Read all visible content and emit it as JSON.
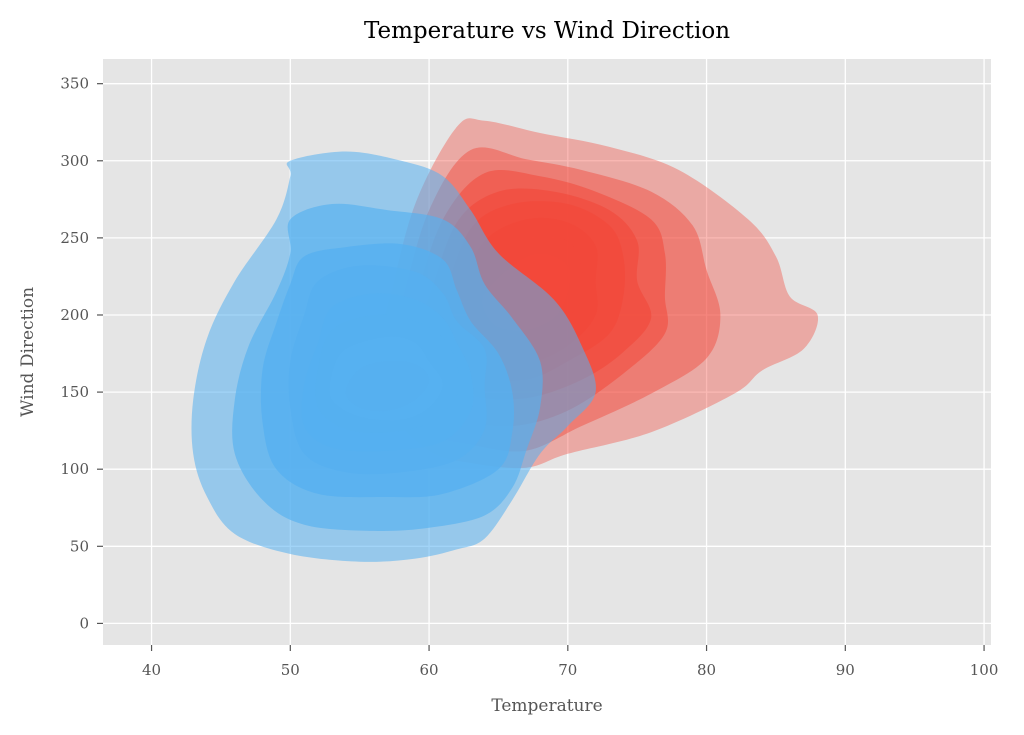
{
  "chart_data": {
    "type": "kde-contour",
    "title": "Temperature vs Wind Direction",
    "xlabel": "Temperature",
    "ylabel": "Wind Direction",
    "xlim": [
      36.5,
      100.5
    ],
    "ylim": [
      -14,
      366
    ],
    "xticks": [
      40,
      50,
      60,
      70,
      80,
      90,
      100
    ],
    "yticks": [
      0,
      50,
      100,
      150,
      200,
      250,
      300,
      350
    ],
    "grid": true,
    "background": "#e5e5e5",
    "series": [
      {
        "color": "#f2483a",
        "levels": [
          {
            "alpha": 0.38,
            "points": [
              [
                57,
                205
              ],
              [
                59,
                272
              ],
              [
                62,
                322
              ],
              [
                64,
                326
              ],
              [
                68,
                318
              ],
              [
                73,
                309
              ],
              [
                78,
                294
              ],
              [
                83,
                262
              ],
              [
                85,
                238
              ],
              [
                86,
                212
              ],
              [
                88,
                200
              ],
              [
                87,
                178
              ],
              [
                84,
                164
              ],
              [
                82,
                149
              ],
              [
                76,
                124
              ],
              [
                70,
                110
              ],
              [
                67,
                101
              ],
              [
                63,
                104
              ],
              [
                60,
                112
              ],
              [
                57,
                140
              ],
              [
                56,
                175
              ]
            ]
          },
          {
            "alpha": 0.45,
            "points": [
              [
                58,
                208
              ],
              [
                60,
                268
              ],
              [
                63,
                307
              ],
              [
                67,
                301
              ],
              [
                71,
                294
              ],
              [
                76,
                280
              ],
              [
                79,
                258
              ],
              [
                80,
                229
              ],
              [
                81,
                200
              ],
              [
                80,
                172
              ],
              [
                76,
                149
              ],
              [
                71,
                128
              ],
              [
                67,
                112
              ],
              [
                63,
                116
              ],
              [
                60,
                124
              ],
              [
                58,
                150
              ],
              [
                57,
                180
              ]
            ]
          },
          {
            "alpha": 0.55,
            "points": [
              [
                59,
                210
              ],
              [
                61,
                262
              ],
              [
                64,
                292
              ],
              [
                68,
                290
              ],
              [
                72,
                280
              ],
              [
                76,
                262
              ],
              [
                77,
                240
              ],
              [
                77,
                212
              ],
              [
                77,
                188
              ],
              [
                74,
                162
              ],
              [
                70,
                138
              ],
              [
                66,
                128
              ],
              [
                62,
                133
              ],
              [
                60,
                150
              ],
              [
                58,
                180
              ]
            ]
          },
          {
            "alpha": 0.62,
            "points": [
              [
                60,
                212
              ],
              [
                62,
                260
              ],
              [
                65,
                280
              ],
              [
                69,
                280
              ],
              [
                73,
                268
              ],
              [
                75,
                248
              ],
              [
                75,
                222
              ],
              [
                76,
                198
              ],
              [
                74,
                176
              ],
              [
                71,
                158
              ],
              [
                67,
                146
              ],
              [
                63,
                148
              ],
              [
                61,
                165
              ],
              [
                59,
                188
              ]
            ]
          },
          {
            "alpha": 0.7,
            "points": [
              [
                61,
                212
              ],
              [
                63,
                256
              ],
              [
                66,
                272
              ],
              [
                70,
                272
              ],
              [
                73,
                258
              ],
              [
                74,
                238
              ],
              [
                74,
                212
              ],
              [
                73,
                188
              ],
              [
                70,
                170
              ],
              [
                67,
                158
              ],
              [
                63,
                160
              ],
              [
                61,
                178
              ],
              [
                60,
                196
              ]
            ]
          },
          {
            "alpha": 0.78,
            "points": [
              [
                62,
                214
              ],
              [
                64,
                248
              ],
              [
                67,
                262
              ],
              [
                70,
                260
              ],
              [
                72,
                245
              ],
              [
                72,
                222
              ],
              [
                72,
                200
              ],
              [
                70,
                180
              ],
              [
                67,
                168
              ],
              [
                64,
                170
              ],
              [
                62,
                185
              ],
              [
                61,
                200
              ]
            ]
          },
          {
            "alpha": 0.86,
            "points": [
              [
                63,
                214
              ],
              [
                65,
                240
              ],
              [
                67,
                250
              ],
              [
                70,
                248
              ],
              [
                71,
                230
              ],
              [
                71,
                210
              ],
              [
                69,
                190
              ],
              [
                67,
                180
              ],
              [
                64,
                182
              ],
              [
                63,
                195
              ]
            ]
          },
          {
            "alpha": 0.94,
            "points": [
              [
                64,
                214
              ],
              [
                66,
                232
              ],
              [
                68,
                240
              ],
              [
                70,
                232
              ],
              [
                70,
                214
              ],
              [
                69,
                198
              ],
              [
                67,
                190
              ],
              [
                65,
                192
              ],
              [
                64,
                202
              ]
            ]
          }
        ]
      },
      {
        "color": "#56b0f0",
        "levels": [
          {
            "alpha": 0.55,
            "points": [
              [
                50,
                300
              ],
              [
                54,
                306
              ],
              [
                58,
                300
              ],
              [
                61,
                290
              ],
              [
                63,
                268
              ],
              [
                65,
                240
              ],
              [
                69,
                210
              ],
              [
                71,
                180
              ],
              [
                72,
                150
              ],
              [
                70,
                128
              ],
              [
                68,
                110
              ],
              [
                66,
                80
              ],
              [
                64,
                55
              ],
              [
                62,
                48
              ],
              [
                59,
                42
              ],
              [
                55,
                40
              ],
              [
                50,
                45
              ],
              [
                46,
                58
              ],
              [
                44,
                82
              ],
              [
                43,
                110
              ],
              [
                43,
                145
              ],
              [
                44,
                185
              ],
              [
                46,
                222
              ],
              [
                49,
                262
              ],
              [
                50,
                290
              ]
            ]
          },
          {
            "alpha": 0.65,
            "points": [
              [
                50,
                262
              ],
              [
                53,
                272
              ],
              [
                57,
                268
              ],
              [
                61,
                262
              ],
              [
                63,
                244
              ],
              [
                64,
                220
              ],
              [
                66,
                198
              ],
              [
                68,
                170
              ],
              [
                68,
                140
              ],
              [
                67,
                112
              ],
              [
                66,
                88
              ],
              [
                64,
                70
              ],
              [
                60,
                62
              ],
              [
                56,
                60
              ],
              [
                51,
                64
              ],
              [
                48,
                80
              ],
              [
                46,
                110
              ],
              [
                46,
                145
              ],
              [
                47,
                180
              ],
              [
                49,
                215
              ],
              [
                50,
                240
              ]
            ]
          },
          {
            "alpha": 0.75,
            "points": [
              [
                51,
                238
              ],
              [
                54,
                244
              ],
              [
                58,
                246
              ],
              [
                61,
                236
              ],
              [
                62,
                216
              ],
              [
                63,
                196
              ],
              [
                65,
                175
              ],
              [
                66,
                150
              ],
              [
                66,
                124
              ],
              [
                65,
                100
              ],
              [
                61,
                84
              ],
              [
                57,
                82
              ],
              [
                52,
                84
              ],
              [
                49,
                100
              ],
              [
                48,
                130
              ],
              [
                48,
                165
              ],
              [
                49,
                195
              ],
              [
                50,
                220
              ]
            ]
          },
          {
            "alpha": 0.78,
            "points": [
              [
                52,
                222
              ],
              [
                55,
                232
              ],
              [
                59,
                228
              ],
              [
                61,
                214
              ],
              [
                62,
                196
              ],
              [
                64,
                178
              ],
              [
                64,
                154
              ],
              [
                64,
                126
              ],
              [
                62,
                106
              ],
              [
                58,
                98
              ],
              [
                54,
                98
              ],
              [
                51,
                110
              ],
              [
                50,
                140
              ],
              [
                50,
                170
              ],
              [
                51,
                200
              ]
            ]
          },
          {
            "alpha": 0.82,
            "points": [
              [
                53,
                205
              ],
              [
                56,
                214
              ],
              [
                59,
                210
              ],
              [
                61,
                198
              ],
              [
                62,
                182
              ],
              [
                63,
                162
              ],
              [
                63,
                138
              ],
              [
                61,
                118
              ],
              [
                57,
                112
              ],
              [
                53,
                114
              ],
              [
                51,
                128
              ],
              [
                51,
                155
              ],
              [
                52,
                182
              ]
            ]
          },
          {
            "alpha": 0.85,
            "points": [
              [
                53,
                190
              ],
              [
                56,
                200
              ],
              [
                59,
                196
              ],
              [
                61,
                185
              ],
              [
                62,
                168
              ],
              [
                62,
                148
              ],
              [
                60,
                130
              ],
              [
                57,
                124
              ],
              [
                54,
                126
              ],
              [
                52,
                140
              ],
              [
                52,
                165
              ]
            ]
          },
          {
            "alpha": 0.88,
            "points": [
              [
                54,
                178
              ],
              [
                57,
                186
              ],
              [
                59,
                182
              ],
              [
                60,
                170
              ],
              [
                61,
                155
              ],
              [
                60,
                140
              ],
              [
                58,
                132
              ],
              [
                55,
                134
              ],
              [
                53,
                145
              ],
              [
                53,
                162
              ]
            ]
          },
          {
            "alpha": 0.92,
            "points": [
              [
                55,
                165
              ],
              [
                57,
                170
              ],
              [
                59,
                168
              ],
              [
                60,
                158
              ],
              [
                59,
                145
              ],
              [
                57,
                138
              ],
              [
                55,
                140
              ],
              [
                54,
                150
              ]
            ]
          }
        ]
      }
    ]
  }
}
